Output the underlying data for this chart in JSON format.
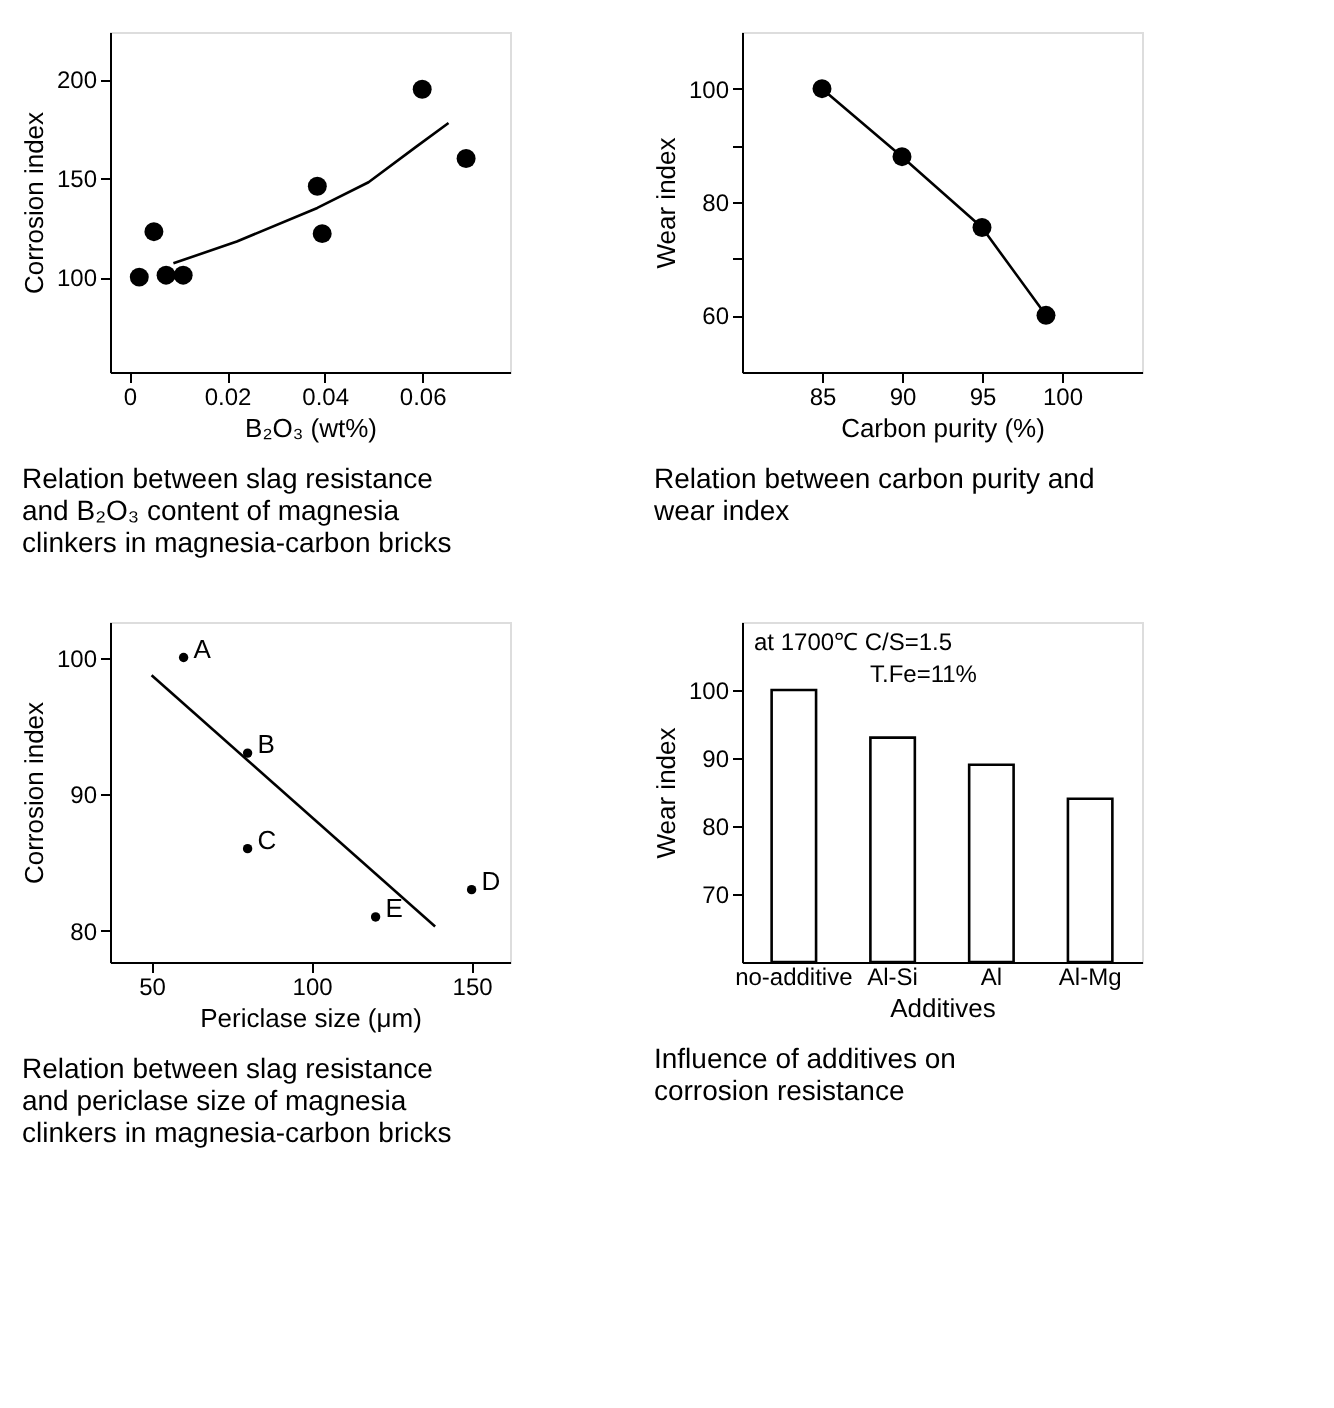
{
  "chart_data": [
    {
      "type": "scatter",
      "title": "Relation between slag resistance and B₂O₃ content of magnesia clinkers in magnesia-carbon bricks",
      "xlabel": "B₂O₃ (wt%)",
      "ylabel": "Corrosion index",
      "xlim": [
        -0.004,
        0.078
      ],
      "xticks": [
        0,
        0.02,
        0.04,
        0.06
      ],
      "ylim": [
        52,
        224
      ],
      "yticks": [
        100,
        150,
        200
      ],
      "grid": false,
      "marker": "circle",
      "series": [
        {
          "color": "#000000",
          "x": [
            0.002,
            0.005,
            0.0075,
            0.011,
            0.0385,
            0.0395,
            0.06,
            0.069
          ],
          "values": [
            100,
            123,
            101,
            101,
            146,
            122,
            195,
            160
          ]
        },
        {
          "type": "line",
          "marker": "none",
          "color": "#000000",
          "x": [
            0.009,
            0.022,
            0.0385,
            0.049,
            0.0588,
            0.0654
          ],
          "values": [
            107,
            118,
            135,
            148,
            166,
            178
          ]
        }
      ]
    },
    {
      "type": "line",
      "title": "Relation between carbon purity and wear index",
      "xlabel": "Carbon purity (%)",
      "ylabel": "Wear index",
      "xlim": [
        80,
        105
      ],
      "xticks": [
        85,
        90,
        95,
        100
      ],
      "ylim": [
        50,
        110
      ],
      "yticks": [
        60,
        {
          "value": 70,
          "label": null
        },
        80,
        {
          "value": 90,
          "label": null
        },
        100
      ],
      "grid": false,
      "marker": "circle",
      "series": [
        {
          "color": "#000000",
          "x": [
            85,
            90,
            95,
            99
          ],
          "values": [
            100,
            88,
            75.5,
            60
          ]
        }
      ]
    },
    {
      "type": "scatter",
      "title": "Relation between slag resistance and periclase size of magnesia clinkers in magnesia-carbon bricks",
      "xlabel": "Periclase size (μm)",
      "ylabel": "Corrosion index",
      "xlim": [
        37,
        162
      ],
      "xticks": [
        50,
        100,
        150
      ],
      "ylim": [
        77.7,
        102.6
      ],
      "yticks": [
        80,
        90,
        100
      ],
      "grid": false,
      "marker": "circle",
      "annotations": [
        {
          "text": "A",
          "x": 60,
          "y": 100
        },
        {
          "text": "B",
          "x": 80,
          "y": 93
        },
        {
          "text": "C",
          "x": 80,
          "y": 86
        },
        {
          "text": "D",
          "x": 150,
          "y": 83
        },
        {
          "text": "E",
          "x": 120,
          "y": 81
        }
      ],
      "series": [
        {
          "color": "#000000",
          "x": [
            60,
            80,
            80,
            150,
            120
          ],
          "values": [
            100,
            93,
            86,
            83,
            81
          ]
        },
        {
          "type": "line",
          "marker": "none",
          "color": "#000000",
          "x": [
            50,
            138.6
          ],
          "values": [
            98.7,
            80.3
          ]
        }
      ]
    },
    {
      "type": "bar",
      "title": "Influence of additives on corrosion resistance",
      "xlabel": "Additives",
      "ylabel": "Wear index",
      "categories": [
        "no-additive",
        "Al-Si",
        "Al",
        "Al-Mg"
      ],
      "values": [
        100,
        93,
        89,
        84
      ],
      "color": "#ffffff",
      "ylim": [
        60,
        110
      ],
      "yticks": [
        70,
        80,
        90,
        100
      ],
      "grid": false,
      "annotations": [
        "at 1700℃ C/S=1.5",
        "T.Fe=11%"
      ]
    }
  ]
}
